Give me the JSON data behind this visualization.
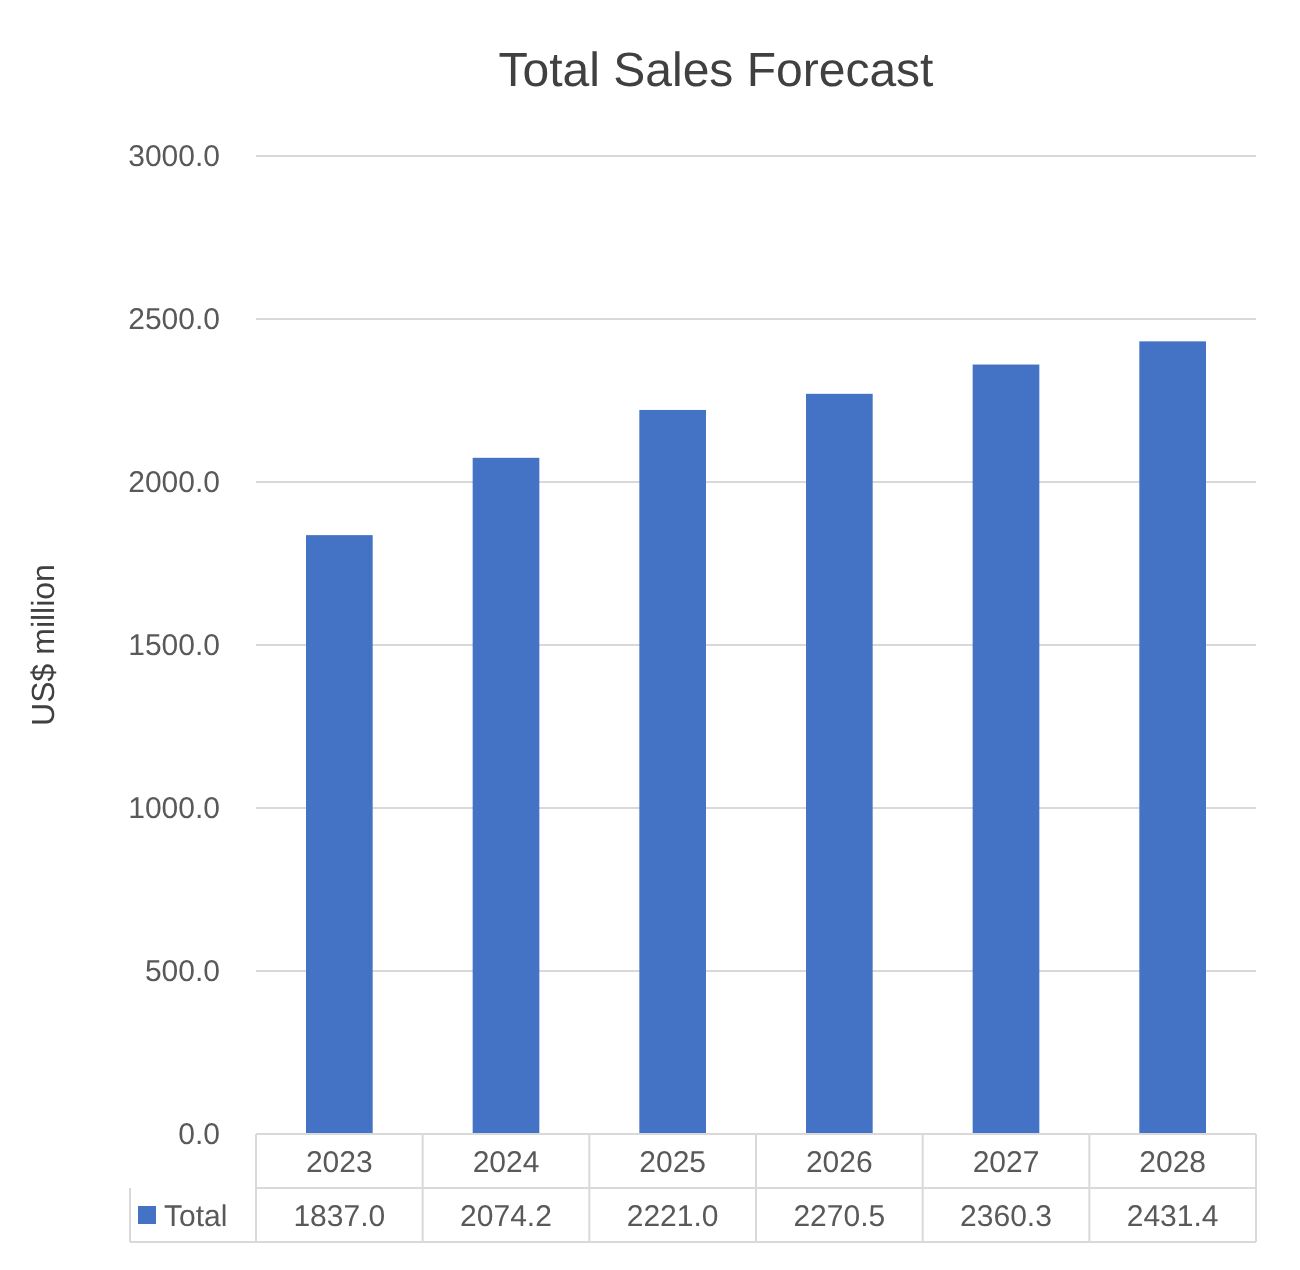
{
  "chart_data": {
    "type": "bar",
    "title": "Total Sales Forecast",
    "ylabel": "US$ million",
    "categories": [
      "2023",
      "2024",
      "2025",
      "2026",
      "2027",
      "2028"
    ],
    "series": [
      {
        "name": "Total",
        "color": "#4472c4",
        "values": [
          1837.0,
          2074.2,
          2221.0,
          2270.5,
          2360.3,
          2431.4
        ],
        "value_labels": [
          "1837.0",
          "2074.2",
          "2221.0",
          "2270.5",
          "2360.3",
          "2431.4"
        ]
      }
    ],
    "ylim": [
      0,
      3000
    ],
    "yticks": [
      {
        "value": 0,
        "label": "0.0"
      },
      {
        "value": 500,
        "label": "500.0"
      },
      {
        "value": 1000,
        "label": "1000.0"
      },
      {
        "value": 1500,
        "label": "1500.0"
      },
      {
        "value": 2000,
        "label": "2000.0"
      },
      {
        "value": 2500,
        "label": "2500.0"
      },
      {
        "value": 3000,
        "label": "3000.0"
      }
    ],
    "grid": "y"
  }
}
